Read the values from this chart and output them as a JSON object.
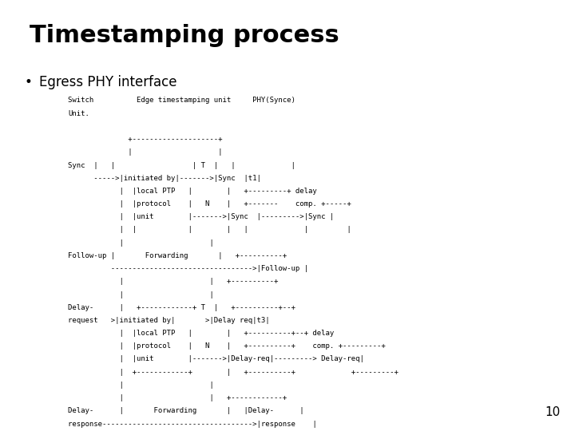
{
  "title": "Timestamping process",
  "bullet": "Egress PHY interface",
  "page_number": "10",
  "background_color": "#ffffff",
  "text_color": "#000000",
  "title_fontsize": 22,
  "bullet_fontsize": 12,
  "mono_fontsize": 6.5,
  "diagram_lines": [
    "Switch          Edge timestamping unit     PHY(Synce)",
    "Unit.",
    "",
    "              +--------------------+",
    "              |                    |",
    "Sync  |   |                  | T  |   |             |",
    "      ----->|initiated by|------->|Sync  |t1|",
    "            |  |local PTP   |        |   +---------+ delay",
    "            |  |protocol    |   N    |   +-------    comp. +-----+",
    "            |  |unit        |------->|Sync  |--------->|Sync |",
    "            |  |            |        |   |             |         |",
    "            |                    |",
    "Follow-up |       Forwarding       |   +----------+",
    "          --------------------------------->|Follow-up |",
    "            |                    |   +----------+",
    "            |                    |",
    "Delay-      |   +------------+ T  |   +----------+--+",
    "request   >|initiated by|       >|Delay req|t3|",
    "            |  |local PTP   |        |   +----------+--+ delay",
    "            |  |protocol    |   N    |   +----------+    comp. +---------+",
    "            |  |unit        |------->|Delay-req|---------> Delay-req|",
    "            |  +------------+        |   +----------+             +---------+",
    "            |                    |",
    "            |                    |   +------------+",
    "Delay-      |       Forwarding       |   |Delay-      |",
    "response----------------------------------->|response    |",
    "            |                    |   +------------+",
    "            |                    |"
  ]
}
